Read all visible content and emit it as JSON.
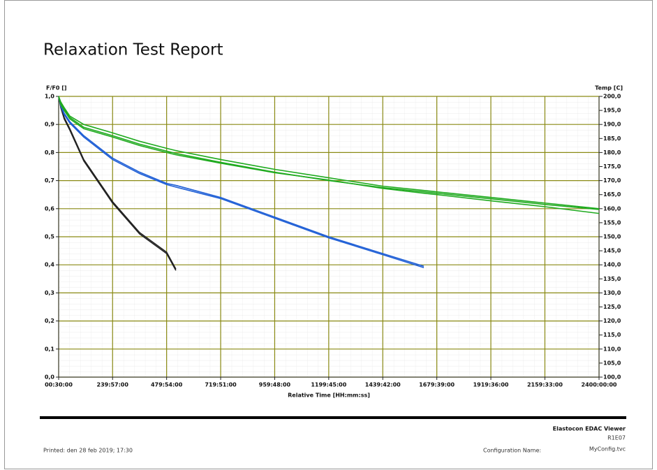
{
  "chart_data": {
    "type": "line",
    "title": "Relaxation Test Report",
    "y_label": "F/F0 []",
    "y2_label": "Temp [C]",
    "x_label": "Relative Time [HH:mm:ss]",
    "x": [
      0.5,
      10,
      25,
      50,
      112,
      240,
      360,
      480,
      521,
      720,
      960,
      1200,
      1440,
      1622,
      1680,
      1920,
      2160,
      2400
    ],
    "series": [
      {
        "color": "#222222",
        "values": [
          1.0,
          0.96,
          0.92,
          0.88,
          0.77,
          0.62,
          0.51,
          0.44,
          0.38,
          null,
          null,
          null,
          null,
          null,
          null,
          null,
          null,
          null
        ]
      },
      {
        "color": "#222222",
        "values": [
          1.0,
          0.965,
          0.925,
          0.885,
          0.775,
          0.625,
          0.515,
          0.445,
          0.385,
          null,
          null,
          null,
          null,
          null,
          null,
          null,
          null,
          null
        ]
      },
      {
        "color": "#1f5fd6",
        "values": [
          1.0,
          0.97,
          0.94,
          0.91,
          0.86,
          0.78,
          0.73,
          0.69,
          0.683,
          0.64,
          0.57,
          0.5,
          0.44,
          0.395,
          null,
          null,
          null,
          null
        ]
      },
      {
        "color": "#1f5fd6",
        "values": [
          1.0,
          0.965,
          0.935,
          0.905,
          0.855,
          0.775,
          0.725,
          0.686,
          0.677,
          0.636,
          0.566,
          0.496,
          0.436,
          0.39,
          null,
          null,
          null,
          null
        ]
      },
      {
        "color": "#1faa1f",
        "values": [
          1.0,
          0.98,
          0.96,
          0.93,
          0.9,
          0.87,
          0.84,
          0.815,
          0.807,
          0.775,
          0.74,
          0.71,
          0.68,
          0.665,
          0.66,
          0.64,
          0.62,
          0.6
        ]
      },
      {
        "color": "#1faa1f",
        "values": [
          1.0,
          0.975,
          0.955,
          0.925,
          0.89,
          0.86,
          0.83,
          0.805,
          0.797,
          0.765,
          0.73,
          0.7,
          0.675,
          0.66,
          0.655,
          0.635,
          0.615,
          0.597
        ]
      },
      {
        "color": "#1faa1f",
        "values": [
          1.0,
          0.97,
          0.95,
          0.92,
          0.885,
          0.855,
          0.825,
          0.8,
          0.792,
          0.762,
          0.728,
          0.702,
          0.672,
          0.655,
          0.65,
          0.628,
          0.607,
          0.583
        ]
      }
    ],
    "xlim": [
      0.5,
      2400
    ],
    "xticks": [
      {
        "value": 0.5,
        "label": "00:30:00"
      },
      {
        "value": 239.95,
        "label": "239:57:00"
      },
      {
        "value": 479.9,
        "label": "479:54:00"
      },
      {
        "value": 719.85,
        "label": "719:51:00"
      },
      {
        "value": 959.8,
        "label": "959:48:00"
      },
      {
        "value": 1199.75,
        "label": "1199:45:00"
      },
      {
        "value": 1439.7,
        "label": "1439:42:00"
      },
      {
        "value": 1679.65,
        "label": "1679:39:00"
      },
      {
        "value": 1919.6,
        "label": "1919:36:00"
      },
      {
        "value": 2159.55,
        "label": "2159:33:00"
      },
      {
        "value": 2400,
        "label": "2400:00:00"
      }
    ],
    "ylim": [
      0,
      1
    ],
    "yticks": [
      {
        "value": 0,
        "label": "0,0"
      },
      {
        "value": 0.1,
        "label": "0,1"
      },
      {
        "value": 0.2,
        "label": "0,2"
      },
      {
        "value": 0.3,
        "label": "0,3"
      },
      {
        "value": 0.4,
        "label": "0,4"
      },
      {
        "value": 0.5,
        "label": "0,5"
      },
      {
        "value": 0.6,
        "label": "0,6"
      },
      {
        "value": 0.7,
        "label": "0,7"
      },
      {
        "value": 0.8,
        "label": "0,8"
      },
      {
        "value": 0.9,
        "label": "0,9"
      },
      {
        "value": 1,
        "label": "1,0"
      }
    ],
    "y2lim": [
      100,
      200
    ],
    "y2ticks": [
      {
        "value": 100,
        "label": "100,0"
      },
      {
        "value": 105,
        "label": "105,0"
      },
      {
        "value": 110,
        "label": "110,0"
      },
      {
        "value": 115,
        "label": "115,0"
      },
      {
        "value": 120,
        "label": "120,0"
      },
      {
        "value": 125,
        "label": "125,0"
      },
      {
        "value": 130,
        "label": "130,0"
      },
      {
        "value": 135,
        "label": "135,0"
      },
      {
        "value": 140,
        "label": "140,0"
      },
      {
        "value": 145,
        "label": "145,0"
      },
      {
        "value": 150,
        "label": "150,0"
      },
      {
        "value": 155,
        "label": "155,0"
      },
      {
        "value": 160,
        "label": "160,0"
      },
      {
        "value": 165,
        "label": "165,0"
      },
      {
        "value": 170,
        "label": "170,0"
      },
      {
        "value": 175,
        "label": "175,0"
      },
      {
        "value": 180,
        "label": "180,0"
      },
      {
        "value": 185,
        "label": "185,0"
      },
      {
        "value": 190,
        "label": "190,0"
      },
      {
        "value": 195,
        "label": "195,0"
      },
      {
        "value": 200,
        "label": "200,0"
      }
    ],
    "grid": true,
    "grid_color": "#8a8a14"
  },
  "footer": {
    "app": "Elastocon EDAC Viewer",
    "version": "R1E07",
    "printed": "Printed: den 28 feb 2019; 17:30",
    "config_label": "Configuration Name:",
    "config_value": "MyConfig.tvc"
  }
}
